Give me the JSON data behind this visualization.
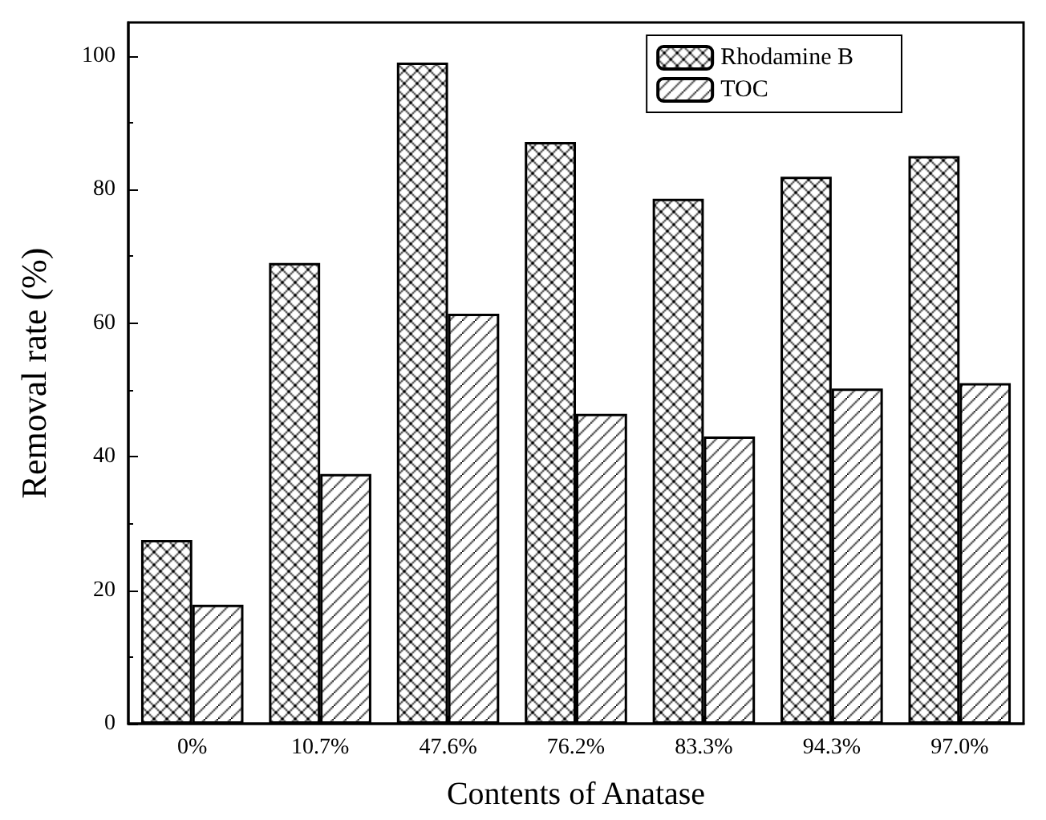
{
  "chart_data": {
    "type": "bar",
    "xlabel": "Contents of Anatase",
    "ylabel": "Removal rate (%)",
    "categories": [
      "0%",
      "10.7%",
      "47.6%",
      "76.2%",
      "83.3%",
      "94.3%",
      "97.0%"
    ],
    "series": [
      {
        "name": "Rhodamine B",
        "color": "#000000",
        "values": [
          27.5,
          69.0,
          99.0,
          87.1,
          78.6,
          81.9,
          85.0
        ]
      },
      {
        "name": "TOC",
        "color": "#000000",
        "values": [
          17.8,
          37.4,
          61.4,
          46.4,
          43.0,
          50.2,
          51.0
        ]
      }
    ],
    "ylim": [
      0,
      105
    ],
    "yticks": [
      0,
      20,
      40,
      60,
      80,
      100
    ],
    "grid": false,
    "legend": "top right"
  }
}
